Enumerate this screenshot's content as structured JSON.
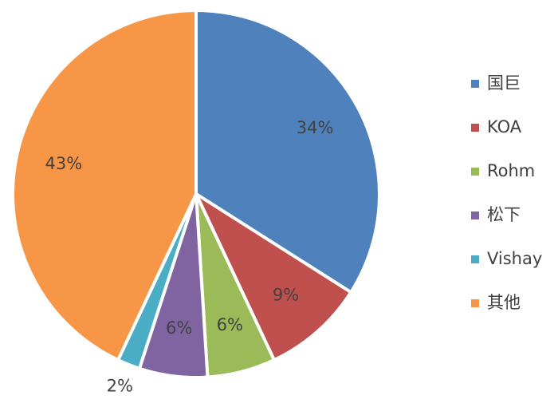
{
  "chart_data": {
    "type": "pie",
    "categories": [
      "国巨",
      "KOA",
      "Rohm",
      "松下",
      "Vishay",
      "其他"
    ],
    "values": [
      34,
      9,
      6,
      6,
      2,
      43
    ],
    "value_labels": [
      "34%",
      "9%",
      "6%",
      "6%",
      "2%",
      "43%"
    ],
    "colors": [
      "#4f81bd",
      "#c0504d",
      "#9bbb59",
      "#8064a2",
      "#4bacc6",
      "#f79646"
    ],
    "legend": "right"
  }
}
